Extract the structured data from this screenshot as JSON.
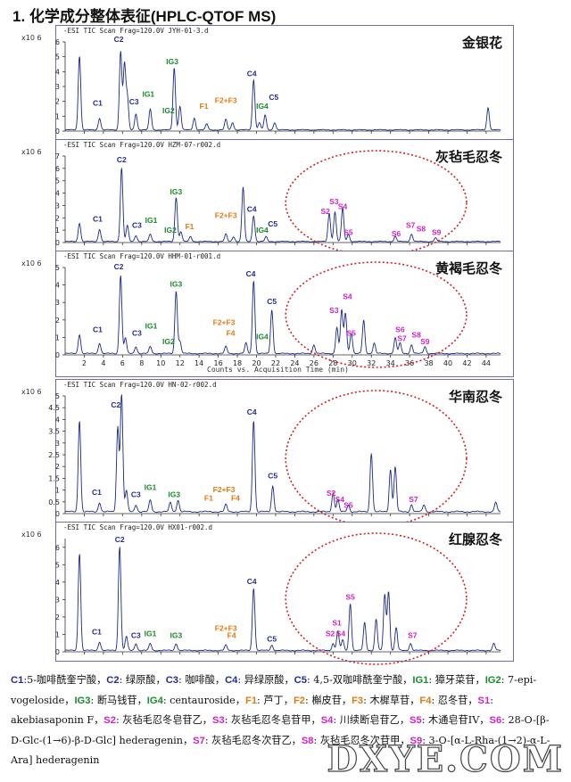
{
  "page_title": "1. 化学成分整体表征(HPLC-QTOF MS)",
  "colors": {
    "blue": "#1f2c9a",
    "green": "#1b8a2b",
    "orange": "#e07a10",
    "magenta": "#d21fc9",
    "trace": "#1a2a8c",
    "ellipse": "#d42020"
  },
  "y_scale_label": "x10 6",
  "x_axis_title": "Counts vs. Acquisition Time (min)",
  "watermark": "DXYE.COM",
  "chart_data": [
    {
      "type": "line",
      "headline": "-ESI TIC Scan Frag=120.0V JYH-01-3.d",
      "sample": "金银花",
      "x_ticks": [
        2,
        4,
        6,
        8,
        10,
        12,
        14,
        16,
        18,
        20,
        22,
        24,
        26,
        28,
        30,
        32,
        34,
        36,
        38,
        40,
        42,
        44
      ],
      "ylim": [
        0,
        6
      ],
      "y_ticks": [
        0,
        1,
        2,
        3,
        4,
        5,
        6
      ],
      "xlim": [
        0,
        45.5
      ],
      "peaks": [
        [
          1.5,
          5.0
        ],
        [
          3.6,
          0.8
        ],
        [
          5.8,
          5.3
        ],
        [
          6.2,
          4.4
        ],
        [
          6.5,
          2.2
        ],
        [
          7.4,
          1.1
        ],
        [
          8.9,
          1.4
        ],
        [
          11.4,
          4.2
        ],
        [
          12.0,
          1.6
        ],
        [
          13.5,
          0.8
        ],
        [
          14.8,
          0.4
        ],
        [
          16.8,
          0.7
        ],
        [
          17.5,
          0.5
        ],
        [
          19.7,
          3.4
        ],
        [
          20.3,
          0.5
        ],
        [
          20.9,
          1.0
        ],
        [
          21.9,
          0.5
        ],
        [
          44.2,
          1.5
        ]
      ],
      "labels": [
        {
          "t": "C1",
          "x": 3.4,
          "y": 1.7,
          "c": "blue"
        },
        {
          "t": "C2",
          "x": 5.6,
          "y": 6.0,
          "c": "blue"
        },
        {
          "t": "C3",
          "x": 7.2,
          "y": 1.8,
          "c": "blue"
        },
        {
          "t": "IG1",
          "x": 8.7,
          "y": 2.3,
          "c": "green"
        },
        {
          "t": "IG2",
          "x": 10.8,
          "y": 1.2,
          "c": "green"
        },
        {
          "t": "IG3",
          "x": 11.2,
          "y": 4.5,
          "c": "green"
        },
        {
          "t": "F1",
          "x": 14.5,
          "y": 1.5,
          "c": "orange"
        },
        {
          "t": "F2+F3",
          "x": 16.8,
          "y": 1.9,
          "c": "orange"
        },
        {
          "t": "C4",
          "x": 19.5,
          "y": 3.7,
          "c": "blue"
        },
        {
          "t": "IG4",
          "x": 20.6,
          "y": 1.5,
          "c": "green"
        },
        {
          "t": "C5",
          "x": 21.8,
          "y": 2.1,
          "c": "blue"
        }
      ],
      "ellipse": false
    },
    {
      "type": "line",
      "headline": "-ESI TIC Scan Frag=120.0V HZM-07-r002.d",
      "sample": "灰毡毛忍冬",
      "x_ticks": [
        2,
        4,
        6,
        8,
        10,
        12,
        14,
        16,
        18,
        20,
        22,
        24,
        26,
        28,
        30,
        32,
        34,
        36,
        38,
        40,
        42,
        44
      ],
      "ylim": [
        0,
        7
      ],
      "y_ticks": [
        0,
        1,
        2,
        3,
        4,
        5,
        6,
        7
      ],
      "xlim": [
        0,
        45.5
      ],
      "peaks": [
        [
          1.5,
          1.5
        ],
        [
          3.6,
          1.0
        ],
        [
          5.9,
          6.0
        ],
        [
          6.5,
          1.3
        ],
        [
          7.4,
          0.5
        ],
        [
          8.9,
          0.6
        ],
        [
          11.6,
          3.6
        ],
        [
          12.1,
          0.8
        ],
        [
          13.1,
          0.4
        ],
        [
          16.8,
          0.6
        ],
        [
          17.6,
          0.4
        ],
        [
          18.6,
          4.4
        ],
        [
          19.7,
          2.1
        ],
        [
          21.0,
          0.4
        ],
        [
          27.6,
          2.3
        ],
        [
          28.2,
          2.4
        ],
        [
          29.0,
          2.7
        ],
        [
          29.6,
          0.6
        ],
        [
          34.5,
          0.4
        ],
        [
          36.2,
          0.6
        ],
        [
          38.7,
          0.3
        ]
      ],
      "labels": [
        {
          "t": "C1",
          "x": 3.4,
          "y": 1.7,
          "c": "blue"
        },
        {
          "t": "C2",
          "x": 5.9,
          "y": 6.5,
          "c": "blue"
        },
        {
          "t": "C3",
          "x": 7.5,
          "y": 1.2,
          "c": "blue"
        },
        {
          "t": "IG1",
          "x": 9.0,
          "y": 1.6,
          "c": "green"
        },
        {
          "t": "IG2",
          "x": 11.0,
          "y": 0.8,
          "c": "green"
        },
        {
          "t": "IG3",
          "x": 11.6,
          "y": 3.9,
          "c": "green"
        },
        {
          "t": "F1",
          "x": 13.0,
          "y": 1.1,
          "c": "orange"
        },
        {
          "t": "F2+F3",
          "x": 16.8,
          "y": 2.0,
          "c": "orange"
        },
        {
          "t": "C4",
          "x": 19.5,
          "y": 2.5,
          "c": "blue"
        },
        {
          "t": "IG4",
          "x": 20.6,
          "y": 0.8,
          "c": "green"
        },
        {
          "t": "C5",
          "x": 21.7,
          "y": 1.3,
          "c": "blue"
        },
        {
          "t": "S2",
          "x": 27.2,
          "y": 2.3,
          "c": "magenta"
        },
        {
          "t": "S3",
          "x": 28.1,
          "y": 3.1,
          "c": "magenta"
        },
        {
          "t": "S4",
          "x": 29.0,
          "y": 2.7,
          "c": "magenta"
        },
        {
          "t": "S5",
          "x": 29.6,
          "y": 0.6,
          "c": "magenta"
        },
        {
          "t": "S6",
          "x": 34.6,
          "y": 0.5,
          "c": "magenta"
        },
        {
          "t": "S7",
          "x": 36.1,
          "y": 1.2,
          "c": "magenta"
        },
        {
          "t": "S8",
          "x": 37.2,
          "y": 0.9,
          "c": "magenta"
        },
        {
          "t": "S9",
          "x": 38.8,
          "y": 0.6,
          "c": "magenta"
        }
      ],
      "ellipse": true
    },
    {
      "type": "line",
      "headline": "-ESI TIC Scan Frag=120.0V HHM-01-r001.d",
      "sample": "黄褐毛忍冬",
      "x_ticks": [
        2,
        4,
        6,
        8,
        10,
        12,
        14,
        16,
        18,
        20,
        22,
        24,
        26,
        28,
        30,
        32,
        34,
        36,
        38,
        40,
        42,
        44
      ],
      "ylim": [
        0,
        5
      ],
      "y_ticks": [
        0,
        1,
        2,
        3,
        4,
        5
      ],
      "xlim": [
        0,
        45.5
      ],
      "peaks": [
        [
          1.5,
          1.1
        ],
        [
          3.6,
          0.6
        ],
        [
          5.8,
          4.5
        ],
        [
          6.3,
          0.9
        ],
        [
          7.4,
          0.4
        ],
        [
          8.9,
          0.4
        ],
        [
          11.6,
          3.6
        ],
        [
          12.0,
          0.7
        ],
        [
          16.8,
          0.4
        ],
        [
          18.9,
          0.6
        ],
        [
          19.7,
          4.2
        ],
        [
          21.6,
          2.5
        ],
        [
          26.0,
          0.5
        ],
        [
          28.4,
          1.5
        ],
        [
          28.9,
          2.5
        ],
        [
          29.3,
          2.3
        ],
        [
          29.9,
          1.2
        ],
        [
          31.2,
          1.9
        ],
        [
          32.3,
          0.6
        ],
        [
          34.5,
          0.9
        ],
        [
          35.0,
          0.6
        ],
        [
          36.2,
          0.5
        ],
        [
          37.6,
          0.4
        ]
      ],
      "labels": [
        {
          "t": "C1",
          "x": 3.4,
          "y": 1.3,
          "c": "blue"
        },
        {
          "t": "C2",
          "x": 5.6,
          "y": 4.9,
          "c": "blue"
        },
        {
          "t": "C3",
          "x": 7.5,
          "y": 1.1,
          "c": "blue"
        },
        {
          "t": "IG1",
          "x": 9.0,
          "y": 1.5,
          "c": "green"
        },
        {
          "t": "IG2",
          "x": 10.8,
          "y": 0.6,
          "c": "green"
        },
        {
          "t": "IG3",
          "x": 11.6,
          "y": 3.9,
          "c": "green"
        },
        {
          "t": "F2+F3",
          "x": 16.6,
          "y": 1.7,
          "c": "orange"
        },
        {
          "t": "F4",
          "x": 17.3,
          "y": 1.1,
          "c": "orange"
        },
        {
          "t": "C4",
          "x": 19.4,
          "y": 4.5,
          "c": "blue"
        },
        {
          "t": "IG4",
          "x": 20.6,
          "y": 0.9,
          "c": "green"
        },
        {
          "t": "C5",
          "x": 21.6,
          "y": 2.9,
          "c": "blue"
        },
        {
          "t": "S3",
          "x": 28.1,
          "y": 2.4,
          "c": "magenta"
        },
        {
          "t": "S4",
          "x": 29.5,
          "y": 3.2,
          "c": "magenta"
        },
        {
          "t": "S5",
          "x": 29.9,
          "y": 1.1,
          "c": "magenta"
        },
        {
          "t": "S6",
          "x": 35.0,
          "y": 1.3,
          "c": "magenta"
        },
        {
          "t": "S7",
          "x": 35.2,
          "y": 0.8,
          "c": "magenta"
        },
        {
          "t": "S8",
          "x": 36.7,
          "y": 1.0,
          "c": "magenta"
        },
        {
          "t": "S9",
          "x": 37.6,
          "y": 0.6,
          "c": "magenta"
        }
      ],
      "ellipse": true
    },
    {
      "type": "line",
      "headline": "-ESI TIC Scan Frag=120.0V HN-02-r002.d",
      "sample": "华南忍冬",
      "x_ticks": [
        2,
        4,
        6,
        8,
        10,
        12,
        14,
        16,
        18,
        20,
        22,
        24,
        26,
        28,
        30,
        32,
        34,
        36,
        38,
        40,
        42,
        44
      ],
      "ylim": [
        0,
        5
      ],
      "y_ticks": [
        0,
        0.5,
        1,
        1.5,
        2,
        2.5,
        3,
        3.5,
        4,
        4.5,
        5
      ],
      "xlim": [
        0,
        45.5
      ],
      "peaks": [
        [
          1.5,
          3.9
        ],
        [
          3.6,
          0.4
        ],
        [
          5.5,
          3.6
        ],
        [
          5.9,
          5.0
        ],
        [
          6.4,
          0.9
        ],
        [
          7.4,
          0.3
        ],
        [
          8.9,
          0.5
        ],
        [
          11.0,
          0.4
        ],
        [
          11.8,
          0.5
        ],
        [
          16.8,
          0.3
        ],
        [
          19.7,
          3.9
        ],
        [
          21.7,
          1.1
        ],
        [
          28.0,
          0.8
        ],
        [
          28.5,
          0.5
        ],
        [
          29.6,
          0.3
        ],
        [
          32.0,
          2.5
        ],
        [
          34.0,
          1.8
        ],
        [
          34.5,
          1.9
        ],
        [
          36.2,
          0.3
        ],
        [
          37.5,
          0.3
        ],
        [
          45.0,
          0.4
        ]
      ],
      "labels": [
        {
          "t": "C1",
          "x": 3.3,
          "y": 0.8,
          "c": "blue"
        },
        {
          "t": "C2",
          "x": 5.3,
          "y": 4.5,
          "c": "blue"
        },
        {
          "t": "C3",
          "x": 7.4,
          "y": 0.7,
          "c": "blue"
        },
        {
          "t": "IG1",
          "x": 8.9,
          "y": 1.0,
          "c": "green"
        },
        {
          "t": "IG3",
          "x": 11.4,
          "y": 0.7,
          "c": "green"
        },
        {
          "t": "F1",
          "x": 15.0,
          "y": 0.55,
          "c": "orange"
        },
        {
          "t": "F2+F3",
          "x": 16.6,
          "y": 0.9,
          "c": "orange"
        },
        {
          "t": "F4",
          "x": 17.8,
          "y": 0.55,
          "c": "orange"
        },
        {
          "t": "C4",
          "x": 19.5,
          "y": 4.2,
          "c": "blue"
        },
        {
          "t": "C5",
          "x": 21.7,
          "y": 1.5,
          "c": "blue"
        },
        {
          "t": "S2",
          "x": 27.8,
          "y": 0.75,
          "c": "magenta"
        },
        {
          "t": "S4",
          "x": 28.7,
          "y": 0.5,
          "c": "magenta"
        },
        {
          "t": "S5",
          "x": 29.6,
          "y": 0.25,
          "c": "magenta"
        },
        {
          "t": "S7",
          "x": 36.4,
          "y": 0.5,
          "c": "magenta"
        }
      ],
      "ellipse": true
    },
    {
      "type": "line",
      "headline": "-ESI TIC Scan Frag=120.0V HX01-r002.d",
      "sample": "红腺忍冬",
      "x_ticks": [
        2,
        4,
        6,
        8,
        10,
        12,
        14,
        16,
        18,
        20,
        22,
        24,
        26,
        28,
        30,
        32,
        34,
        36,
        38,
        40,
        42,
        44
      ],
      "ylim": [
        0,
        6.5
      ],
      "y_ticks": [
        0,
        1,
        2,
        3,
        4,
        5,
        6
      ],
      "xlim": [
        0,
        45.5
      ],
      "peaks": [
        [
          1.5,
          5.6
        ],
        [
          3.6,
          0.5
        ],
        [
          5.7,
          6.0
        ],
        [
          6.4,
          0.8
        ],
        [
          7.4,
          0.4
        ],
        [
          8.9,
          0.4
        ],
        [
          11.6,
          0.4
        ],
        [
          16.8,
          0.3
        ],
        [
          19.7,
          3.6
        ],
        [
          21.6,
          0.3
        ],
        [
          28.0,
          0.4
        ],
        [
          28.5,
          1.1
        ],
        [
          29.0,
          0.6
        ],
        [
          29.8,
          2.7
        ],
        [
          31.3,
          1.6
        ],
        [
          32.5,
          1.8
        ],
        [
          33.4,
          3.2
        ],
        [
          33.8,
          3.4
        ],
        [
          34.6,
          1.3
        ],
        [
          36.1,
          0.4
        ],
        [
          44.8,
          0.4
        ]
      ],
      "labels": [
        {
          "t": "C1",
          "x": 3.3,
          "y": 1.0,
          "c": "blue"
        },
        {
          "t": "C2",
          "x": 5.7,
          "y": 6.3,
          "c": "blue"
        },
        {
          "t": "C3",
          "x": 7.4,
          "y": 0.8,
          "c": "blue"
        },
        {
          "t": "IG1",
          "x": 8.9,
          "y": 0.9,
          "c": "green"
        },
        {
          "t": "IG3",
          "x": 11.6,
          "y": 0.8,
          "c": "green"
        },
        {
          "t": "F2+F3",
          "x": 16.8,
          "y": 1.2,
          "c": "orange"
        },
        {
          "t": "F4",
          "x": 17.4,
          "y": 0.8,
          "c": "orange"
        },
        {
          "t": "C4",
          "x": 19.5,
          "y": 3.9,
          "c": "blue"
        },
        {
          "t": "C5",
          "x": 21.6,
          "y": 0.6,
          "c": "blue"
        },
        {
          "t": "S1",
          "x": 28.4,
          "y": 1.5,
          "c": "magenta"
        },
        {
          "t": "S2",
          "x": 27.7,
          "y": 0.9,
          "c": "magenta"
        },
        {
          "t": "S4",
          "x": 28.8,
          "y": 0.9,
          "c": "magenta"
        },
        {
          "t": "S5",
          "x": 29.8,
          "y": 3.0,
          "c": "magenta"
        },
        {
          "t": "S7",
          "x": 36.3,
          "y": 0.8,
          "c": "magenta"
        }
      ],
      "ellipse": true
    }
  ],
  "legend_items": [
    {
      "key": "C1",
      "text": ":5-咖啡酰奎宁酸，",
      "c": "blue"
    },
    {
      "key": "C2",
      "text": ": 绿原酸，",
      "c": "blue"
    },
    {
      "key": "C3",
      "text": ": 咖啡酸，",
      "c": "blue"
    },
    {
      "key": "C4",
      "text": ": 异绿原酸，",
      "c": "blue"
    },
    {
      "key": "C5",
      "text": ": 4,5-双咖啡酰奎宁酸，",
      "c": "blue"
    },
    {
      "key": "IG1",
      "text": ": 獐牙菜苷，",
      "c": "green"
    },
    {
      "key": "IG2",
      "text": ": 7-epi-vogeloside，",
      "c": "green"
    },
    {
      "key": "IG3",
      "text": ": 断马钱苷，",
      "c": "green"
    },
    {
      "key": "IG4",
      "text": ": centauroside，",
      "c": "green"
    },
    {
      "key": "F1",
      "text": ": 芦丁，",
      "c": "orange"
    },
    {
      "key": "F2",
      "text": ": 槲皮苷，",
      "c": "orange"
    },
    {
      "key": "F3",
      "text": ": 木樨草苷，",
      "c": "orange"
    },
    {
      "key": "F4",
      "text": ": 忍冬苷，",
      "c": "orange"
    },
    {
      "key": "S1",
      "text": ": akebiasaponin F，",
      "c": "magenta"
    },
    {
      "key": "S2",
      "text": ": 灰毡毛忍冬皂苷乙，",
      "c": "magenta"
    },
    {
      "key": "S3",
      "text": ": 灰毡毛忍冬皂苷甲，",
      "c": "magenta"
    },
    {
      "key": "S4",
      "text": ": 川续断皂苷乙，",
      "c": "magenta"
    },
    {
      "key": "S5",
      "text": ": 木通皂苷IV，",
      "c": "magenta"
    },
    {
      "key": "S6",
      "text": ": 28-O-[β-D-Glc-(1→6)-β-D-Glc] hederagenin，",
      "c": "magenta"
    },
    {
      "key": "S7",
      "text": ": 灰毡毛忍冬次苷乙，",
      "c": "magenta"
    },
    {
      "key": "S8",
      "text": ": 灰毡毛忍冬次苷甲，",
      "c": "magenta"
    },
    {
      "key": "S9",
      "text": ": 3-O-[α-L-Rha-(1→2)-α-L-Ara] hederagenin",
      "c": "magenta"
    }
  ]
}
